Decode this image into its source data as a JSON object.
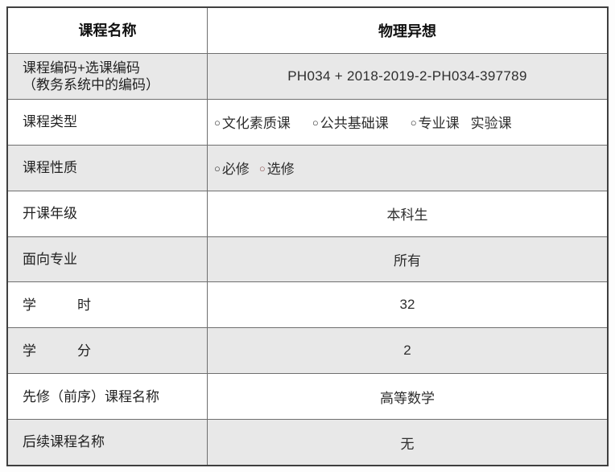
{
  "colors": {
    "row_alt_bg": "#e8e8e8",
    "border_outer": "#3f3f3f",
    "border_inner": "#6f6f6f",
    "text_primary": "#1e1e1e",
    "radio_circle_default": "#2a2a2a",
    "radio_circle_red": "#8d5252"
  },
  "table": {
    "header": {
      "label": "课程名称",
      "value": "物理异想"
    },
    "course_code": {
      "label_line1": "课程编码+选课编码",
      "label_line2": "（教务系统中的编码）",
      "value": "PH034 + 2018-2019-2-PH034-397789"
    },
    "course_type": {
      "label": "课程类型",
      "options": [
        {
          "marker": "○",
          "text": "文化素质课"
        },
        {
          "marker": "○",
          "text": "公共基础课"
        },
        {
          "marker": "○",
          "text": "专业课"
        },
        {
          "marker": "",
          "text": "实验课"
        }
      ]
    },
    "course_nature": {
      "label": "课程性质",
      "options": [
        {
          "marker": "○",
          "text": "必修"
        },
        {
          "marker": "○",
          "text": "选修"
        }
      ]
    },
    "grade": {
      "label": "开课年级",
      "value": "本科生"
    },
    "majors": {
      "label": "面向专业",
      "value": "所有"
    },
    "hours": {
      "label": "学　　　时",
      "value": "32"
    },
    "credits": {
      "label": "学　　　分",
      "value": "2"
    },
    "prerequisite": {
      "label": "先修（前序）课程名称",
      "value": "高等数学"
    },
    "followup": {
      "label": "后续课程名称",
      "value": "无"
    }
  }
}
